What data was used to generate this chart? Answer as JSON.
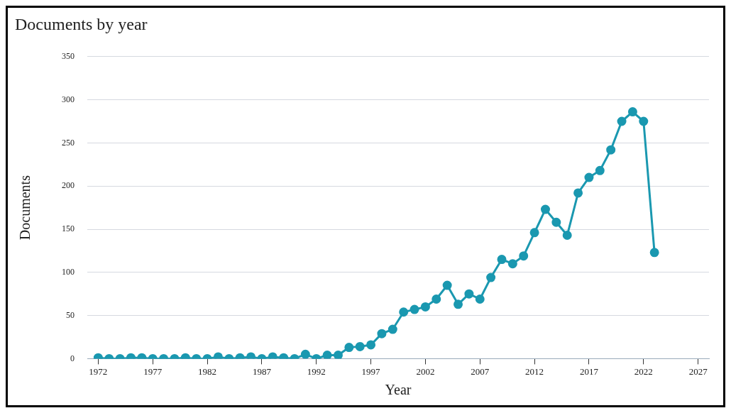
{
  "chart_data": {
    "type": "line",
    "title": "Documents by year",
    "xlabel": "Year",
    "ylabel": "Documents",
    "x": [
      1972,
      1973,
      1974,
      1975,
      1976,
      1977,
      1978,
      1979,
      1980,
      1981,
      1982,
      1983,
      1984,
      1985,
      1986,
      1987,
      1988,
      1989,
      1990,
      1991,
      1992,
      1993,
      1994,
      1995,
      1996,
      1997,
      1998,
      1999,
      2000,
      2001,
      2002,
      2003,
      2004,
      2005,
      2006,
      2007,
      2008,
      2009,
      2010,
      2011,
      2012,
      2013,
      2014,
      2015,
      2016,
      2017,
      2018,
      2019,
      2020,
      2021,
      2022,
      2023
    ],
    "series": [
      {
        "color": "#1a98b0",
        "values": [
          1,
          0,
          0,
          1,
          1,
          0,
          0,
          0,
          1,
          0,
          0,
          2,
          0,
          1,
          2,
          0,
          2,
          1,
          0,
          5,
          0,
          4,
          4,
          13,
          14,
          16,
          29,
          34,
          54,
          57,
          60,
          69,
          85,
          63,
          75,
          69,
          94,
          115,
          110,
          119,
          146,
          173,
          158,
          143,
          192,
          210,
          218,
          242,
          275,
          286,
          275,
          123
        ]
      }
    ],
    "xlim": [
      1971,
      2028
    ],
    "xticks": [
      1972,
      1977,
      1982,
      1987,
      1992,
      1997,
      2002,
      2007,
      2012,
      2017,
      2022,
      2027
    ],
    "ylim": [
      0,
      350
    ],
    "yticks": [
      0,
      50,
      100,
      150,
      200,
      250,
      300,
      350
    ],
    "grid": "y",
    "legend": false,
    "marker": "circle",
    "line_style": "solid"
  }
}
